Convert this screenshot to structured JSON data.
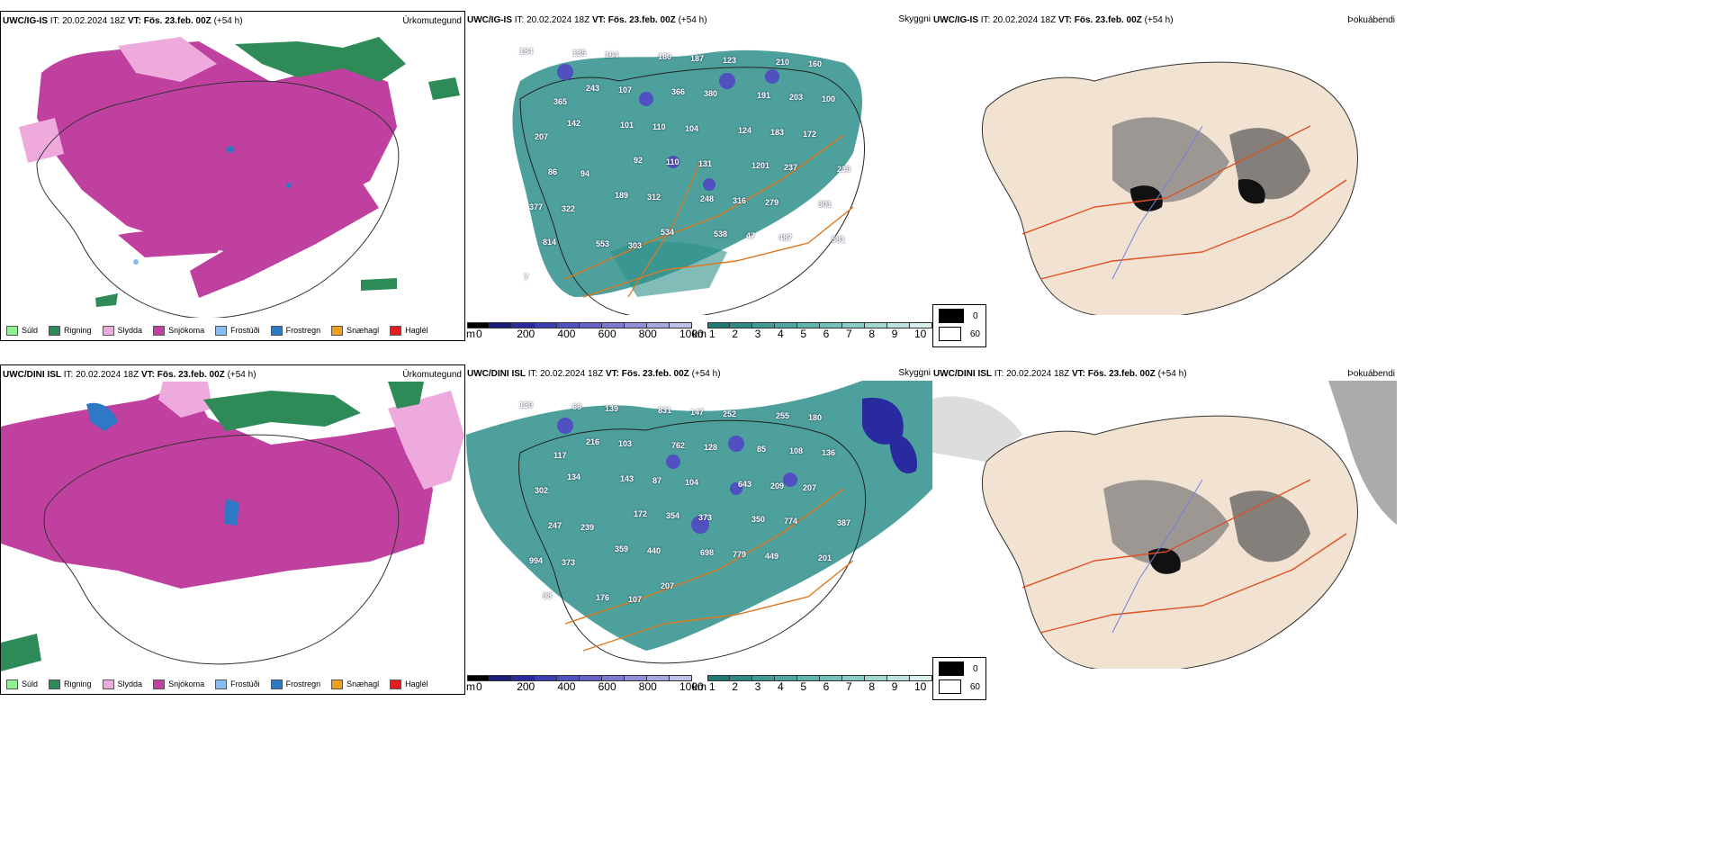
{
  "colors": {
    "sudl": "#8ff08f",
    "rigning": "#2e8b57",
    "slydda": "#eeaadd",
    "snjokoma": "#c040a0",
    "frostudi": "#88bbee",
    "frostregn": "#2f78c5",
    "snaehagl": "#f0a020",
    "haglel": "#e02020",
    "cloud_teal": "#2e8f8a",
    "road_orange": "#e07820",
    "land_beige": "#f2e2d2"
  },
  "rows": [
    {
      "model": "UWC/IG-IS",
      "it_label": "IT: 20.02.2024 18Z",
      "vt_label": "VT: Fös. 23.feb. 00Z",
      "lead": "(+54 h)",
      "precip_title": "Úrkomutegund",
      "cloud_title": "Skyggni",
      "fog_title": "Þokuábendi",
      "visibility_labels": [
        "184",
        "135",
        "164",
        "180",
        "187",
        "123",
        "210",
        "160",
        "365",
        "243",
        "107",
        "366",
        "380",
        "191",
        "203",
        "100",
        "207",
        "142",
        "101",
        "110",
        "104",
        "124",
        "183",
        "172",
        "86",
        "94",
        "92",
        "110",
        "131",
        "1201",
        "237",
        "239",
        "377",
        "322",
        "189",
        "312",
        "248",
        "316",
        "279",
        "301",
        "814",
        "553",
        "303",
        "534",
        "538",
        "47",
        "487",
        "581",
        "7"
      ]
    },
    {
      "model": "UWC/DINI ISL",
      "it_label": "IT: 20.02.2024 18Z",
      "vt_label": "VT: Fös. 23.feb. 00Z",
      "lead": "(+54 h)",
      "precip_title": "Úrkomutegund",
      "cloud_title": "Skyggni",
      "fog_title": "Þokuábendi",
      "visibility_labels": [
        "130",
        "68",
        "139",
        "831",
        "147",
        "252",
        "255",
        "180",
        "117",
        "216",
        "103",
        "762",
        "128",
        "85",
        "108",
        "136",
        "302",
        "134",
        "143",
        "87",
        "104",
        "643",
        "209",
        "207",
        "247",
        "239",
        "172",
        "354",
        "373",
        "350",
        "774",
        "387",
        "994",
        "373",
        "359",
        "440",
        "698",
        "779",
        "449",
        "201",
        "98",
        "176",
        "107",
        "207"
      ]
    }
  ],
  "precip_legend": [
    {
      "label": "Súld",
      "color_key": "sudl"
    },
    {
      "label": "Rigning",
      "color_key": "rigning"
    },
    {
      "label": "Slydda",
      "color_key": "slydda"
    },
    {
      "label": "Snjókoma",
      "color_key": "snjokoma"
    },
    {
      "label": "Frostúði",
      "color_key": "frostudi"
    },
    {
      "label": "Frostregn",
      "color_key": "frostregn"
    },
    {
      "label": "Snæhagl",
      "color_key": "snaehagl"
    },
    {
      "label": "Haglél",
      "color_key": "haglel"
    }
  ],
  "cloudbase_scale": {
    "unit": "m",
    "ticks": [
      "0",
      "200",
      "400",
      "600",
      "800",
      "1000"
    ],
    "colors": [
      "#000000",
      "#1a1a7a",
      "#2a2aa0",
      "#3c3cb4",
      "#5050c0",
      "#6464c8",
      "#7a7ad0",
      "#9090d8",
      "#a8a8e0",
      "#c0c0ea"
    ]
  },
  "visibility_scale": {
    "unit": "km",
    "ticks": [
      "1",
      "2",
      "3",
      "4",
      "5",
      "6",
      "7",
      "8",
      "9",
      "10"
    ],
    "colors": [
      "#1f7a76",
      "#2e8a85",
      "#3d9a94",
      "#4ea8a2",
      "#60b4ae",
      "#76c0ba",
      "#8ccac6",
      "#a4d6d2",
      "#bee2df",
      "#d8eeec"
    ]
  },
  "fog_legend": [
    {
      "label": "0",
      "color": "#000000"
    },
    {
      "label": "60",
      "color": "#ffffff"
    }
  ]
}
